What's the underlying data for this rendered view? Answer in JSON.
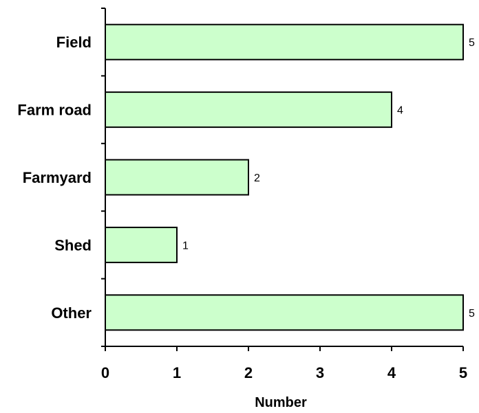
{
  "chart_data": {
    "type": "bar",
    "orientation": "horizontal",
    "categories": [
      "Field",
      "Farm road",
      "Farmyard",
      "Shed",
      "Other"
    ],
    "values": [
      5,
      4,
      2,
      1,
      5
    ],
    "title": "",
    "xlabel": "Number",
    "ylabel": "",
    "xlim": [
      0,
      5
    ],
    "xticks": [
      "0",
      "1",
      "2",
      "3",
      "4",
      "5"
    ],
    "grid": false,
    "data_labels": true,
    "colors": {
      "bar_fill": "#ccffcc",
      "bar_stroke": "#000000",
      "axis": "#000000"
    }
  }
}
